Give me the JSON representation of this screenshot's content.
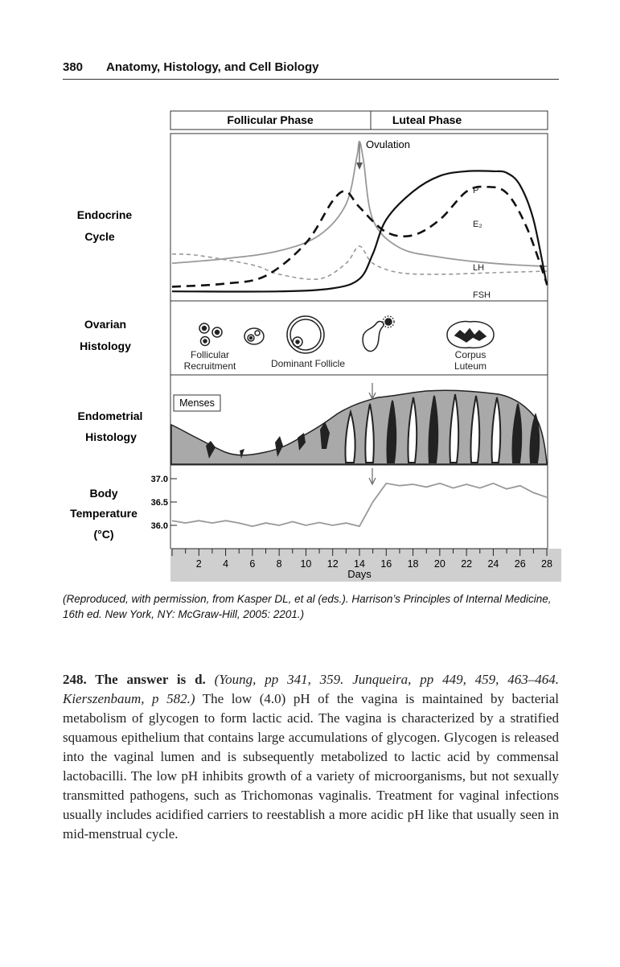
{
  "header": {
    "page_number": "380",
    "title": "Anatomy, Histology, and Cell Biology"
  },
  "figure": {
    "phases": [
      "Follicular Phase",
      "Luteal Phase"
    ],
    "ovulation_label": "Ovulation",
    "row_labels": {
      "endocrine": [
        "Endocrine",
        "Cycle"
      ],
      "ovarian": [
        "Ovarian",
        "Histology"
      ],
      "endometrial": [
        "Endometrial",
        "Histology"
      ],
      "temperature": [
        "Body",
        "Temperature",
        "(°C)"
      ]
    },
    "hormone_labels": {
      "p": "P",
      "e2": "E₂",
      "lh": "LH",
      "fsh": "FSH"
    },
    "ovarian_labels": {
      "follicular_recruitment": [
        "Follicular",
        "Recruitment"
      ],
      "dominant_follicle": "Dominant Follicle",
      "corpus_luteum": [
        "Corpus",
        "Luteum"
      ]
    },
    "menses_label": "Menses",
    "x_axis_label": "Days"
  },
  "chart_data": {
    "type": "line",
    "x_label": "Days",
    "x_ticks": [
      2,
      4,
      6,
      8,
      10,
      12,
      14,
      16,
      18,
      20,
      22,
      24,
      26,
      28
    ],
    "x_range": [
      0,
      28
    ],
    "y_label": "Body Temperature (°C)",
    "y_ticks": [
      "37.0",
      "36.5",
      "36.0"
    ],
    "y_range": [
      35.9,
      37.1
    ],
    "series": [
      {
        "name": "Body Temperature",
        "x": [
          0,
          1,
          2,
          3,
          4,
          5,
          6,
          7,
          8,
          9,
          10,
          11,
          12,
          13,
          14,
          15,
          16,
          17,
          18,
          19,
          20,
          21,
          22,
          23,
          24,
          25,
          26,
          27,
          28
        ],
        "values": [
          36.1,
          36.05,
          36.1,
          36.05,
          36.1,
          36.05,
          35.98,
          36.05,
          36.0,
          36.08,
          36.0,
          36.06,
          36.0,
          36.05,
          35.98,
          36.5,
          36.9,
          36.85,
          36.88,
          36.82,
          36.9,
          36.8,
          36.88,
          36.8,
          36.9,
          36.78,
          36.85,
          36.7,
          36.6
        ]
      }
    ],
    "hormone_series": [
      {
        "name": "LH",
        "x": [
          0,
          4,
          8,
          11,
          13,
          13.8,
          14,
          14.3,
          15,
          17,
          20,
          24,
          28
        ],
        "values": [
          0.22,
          0.25,
          0.3,
          0.4,
          0.6,
          0.9,
          1.0,
          0.88,
          0.5,
          0.32,
          0.26,
          0.22,
          0.2
        ]
      },
      {
        "name": "FSH",
        "x": [
          0,
          2,
          6,
          8,
          11,
          13,
          14,
          15,
          17,
          20,
          24,
          28
        ],
        "values": [
          0.28,
          0.27,
          0.21,
          0.15,
          0.12,
          0.22,
          0.33,
          0.22,
          0.16,
          0.15,
          0.16,
          0.17
        ]
      },
      {
        "name": "E2",
        "x": [
          0,
          4,
          7,
          10,
          12,
          13,
          14,
          16,
          18,
          20,
          22,
          23.5,
          25,
          26.5,
          28
        ],
        "values": [
          0.07,
          0.09,
          0.14,
          0.35,
          0.62,
          0.68,
          0.58,
          0.42,
          0.4,
          0.5,
          0.68,
          0.71,
          0.67,
          0.45,
          0.09
        ]
      },
      {
        "name": "P",
        "x": [
          0,
          8,
          12,
          14,
          15,
          16,
          18,
          20,
          22,
          24,
          25,
          26,
          27,
          28
        ],
        "values": [
          0.04,
          0.04,
          0.06,
          0.12,
          0.28,
          0.5,
          0.68,
          0.78,
          0.81,
          0.81,
          0.8,
          0.72,
          0.5,
          0.08
        ]
      }
    ]
  },
  "caption": "(Reproduced, with permission, from Kasper DL, et al (eds.). Harrison’s Principles of Internal Medicine, 16th ed. New York, NY: McGraw-Hill, 2005: 2201.)",
  "answer": {
    "number": "248. The answer is d.",
    "reference": "(Young, pp 341, 359. Junqueira, pp 449, 459, 463–464. Kierszenbaum, p 582.)",
    "text": "The low (4.0) pH of the vagina is maintained by bacterial metabolism of glycogen to form lactic acid. The vagina is characterized by a stratified squamous epithelium that contains large accumulations of glycogen. Glycogen is released into the vaginal lumen and is subsequently metabolized to lactic acid by commensal lactobacilli. The low pH inhibits growth of a variety of microorganisms, but not sexually transmitted pathogens, such as Trichomonas vaginalis. Treatment for vaginal infections usually includes acidified carriers to reestablish a more acidic pH like that usually seen in mid-menstrual cycle."
  }
}
